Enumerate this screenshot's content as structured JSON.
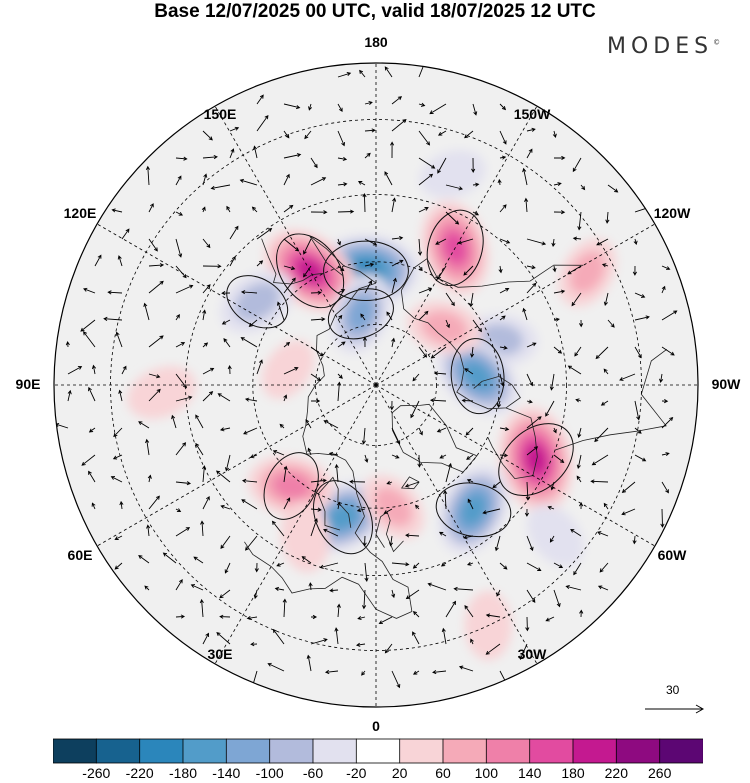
{
  "title": "Base 12/07/2025 00 UTC, valid 18/07/2025 12 UTC",
  "brand": {
    "name": "MODES",
    "mark": "©"
  },
  "longitude_labels": [
    {
      "key": "0",
      "text": "0"
    },
    {
      "key": "30E",
      "text": "30E"
    },
    {
      "key": "60E",
      "text": "60E"
    },
    {
      "key": "90E",
      "text": "90E"
    },
    {
      "key": "120E",
      "text": "120E"
    },
    {
      "key": "150E",
      "text": "150E"
    },
    {
      "key": "180",
      "text": "180"
    },
    {
      "key": "150W",
      "text": "150W"
    },
    {
      "key": "120W",
      "text": "120W"
    },
    {
      "key": "90W",
      "text": "90W"
    },
    {
      "key": "60W",
      "text": "60W"
    },
    {
      "key": "30W",
      "text": "30W"
    }
  ],
  "vector_scale": {
    "label": "30"
  },
  "colorbar": {
    "ticks": [
      "-260",
      "-220",
      "-180",
      "-140",
      "-100",
      "-60",
      "-20",
      "20",
      "60",
      "100",
      "140",
      "180",
      "220",
      "260"
    ],
    "colors": [
      "#0d3f5e",
      "#17628f",
      "#2b86bb",
      "#529cc9",
      "#7ea6d4",
      "#b2bbdc",
      "#e2e1ef",
      "#ffffff",
      "#f8d4d7",
      "#f5aab8",
      "#ef80a9",
      "#e24ba0",
      "#c41990",
      "#8e0a80",
      "#5c0673"
    ]
  },
  "anomalies": [
    {
      "lon": 175,
      "lat": 62,
      "value": -230
    },
    {
      "lon": 150,
      "lat": 58,
      "value": 210
    },
    {
      "lon": -150,
      "lat": 52,
      "value": 180
    },
    {
      "lon": 168,
      "lat": 72,
      "value": -120
    },
    {
      "lon": 125,
      "lat": 55,
      "value": -110
    },
    {
      "lon": -110,
      "lat": 58,
      "value": -90
    },
    {
      "lon": -95,
      "lat": 65,
      "value": -170
    },
    {
      "lon": -65,
      "lat": 48,
      "value": 230
    },
    {
      "lon": -38,
      "lat": 52,
      "value": -170
    },
    {
      "lon": 14,
      "lat": 57,
      "value": -180
    },
    {
      "lon": 40,
      "lat": 58,
      "value": 140
    },
    {
      "lon": -8,
      "lat": 60,
      "value": 80
    },
    {
      "lon": 25,
      "lat": 50,
      "value": 70
    },
    {
      "lon": -118,
      "lat": 35,
      "value": 80
    },
    {
      "lon": 88,
      "lat": 40,
      "value": 70
    },
    {
      "lon": -130,
      "lat": 68,
      "value": 90
    },
    {
      "lon": -50,
      "lat": 36,
      "value": -60
    },
    {
      "lon": -25,
      "lat": 30,
      "value": 60
    },
    {
      "lon": 100,
      "lat": 68,
      "value": 40
    },
    {
      "lon": -160,
      "lat": 38,
      "value": -50
    }
  ]
}
